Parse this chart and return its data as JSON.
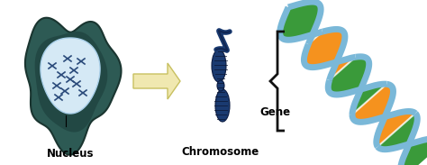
{
  "background_color": "#ffffff",
  "labels": {
    "nucleus": "Nucleus",
    "chromosome": "Chromosome",
    "gene": "Gene"
  },
  "label_fontsize": 8.5,
  "arrow_color": "#f0e8a0",
  "arrow_outline": "#d4c060",
  "cell_outer_color": "#2a5550",
  "cell_inner_color": "#d8eef8",
  "chrom_color": "#1a3a6a",
  "dna_strand_color": "#7ab8d8",
  "dna_green": "#3a9a3a",
  "dna_orange": "#f5921e",
  "brace_color": "#111111",
  "figsize": [
    4.74,
    1.83
  ],
  "dpi": 100
}
